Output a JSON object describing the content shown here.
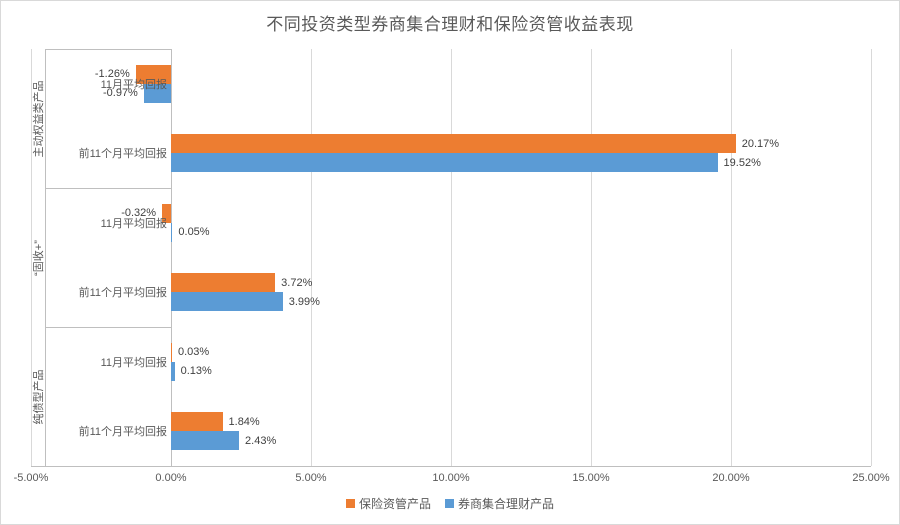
{
  "chart_data": {
    "type": "bar",
    "orientation": "horizontal",
    "title": "不同投资类型券商集合理财和保险资管收益表现",
    "xlabel": "",
    "ylabel": "",
    "groups": [
      "主动权益类产品",
      "“固收+”",
      "纯债型产品"
    ],
    "subcategories": [
      "11月平均回报",
      "前11个月平均回报"
    ],
    "series": [
      {
        "name": "保险资管产品",
        "color": "#ED7D31",
        "values": [
          [
            -1.26,
            20.17
          ],
          [
            -0.32,
            3.72
          ],
          [
            0.03,
            1.84
          ]
        ],
        "labels": [
          [
            "-1.26%",
            "20.17%"
          ],
          [
            "-0.32%",
            "3.72%"
          ],
          [
            "0.03%",
            "1.84%"
          ]
        ]
      },
      {
        "name": "券商集合理财产品",
        "color": "#5B9BD5",
        "values": [
          [
            -0.97,
            19.52
          ],
          [
            0.05,
            3.99
          ],
          [
            0.13,
            2.43
          ]
        ],
        "labels": [
          [
            "-0.97%",
            "19.52%"
          ],
          [
            "0.05%",
            "3.99%"
          ],
          [
            "0.13%",
            "2.43%"
          ]
        ]
      }
    ],
    "x_tick_values": [
      -5,
      0,
      5,
      10,
      15,
      20,
      25
    ],
    "x_tick_labels": [
      "-5.00%",
      "0.00%",
      "5.00%",
      "10.00%",
      "15.00%",
      "20.00%",
      "25.00%"
    ],
    "xlim": [
      -5,
      25
    ],
    "value_suffix": "%",
    "gridlines": true,
    "legend_position": "bottom"
  },
  "colors": {
    "grid": "#D9D9D9",
    "axis": "#BFBFBF",
    "tick_text": "#595959",
    "data_label_text": "#404040",
    "frame_border": "#D9D9D9",
    "background": "#FFFFFF"
  }
}
